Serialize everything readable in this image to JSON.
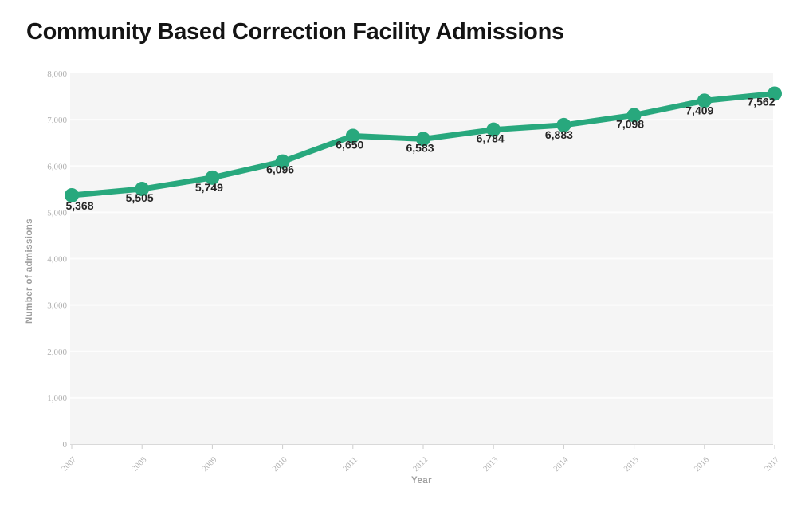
{
  "title": "Community Based Correction Facility Admissions",
  "chart_data": {
    "type": "line",
    "title": "Community Based Correction Facility Admissions",
    "categories": [
      "2007",
      "2008",
      "2009",
      "2010",
      "2011",
      "2012",
      "2013",
      "2014",
      "2015",
      "2016",
      "2017"
    ],
    "series": [
      {
        "name": "Number of admissions",
        "values": [
          5368,
          5505,
          5749,
          6096,
          6650,
          6583,
          6784,
          6883,
          7098,
          7409,
          7562
        ]
      }
    ],
    "point_labels": [
      "5,368",
      "5,505",
      "5,749",
      "6,096",
      "6,650",
      "6,583",
      "6,784",
      "6,883",
      "7,098",
      "7,409",
      "7,562"
    ],
    "xlabel": "Year",
    "ylabel": "Number of admissions",
    "ylim": [
      0,
      8000
    ],
    "ytick_step": 1000,
    "ytick_labels": [
      "0",
      "1,000",
      "2,000",
      "3,000",
      "4,000",
      "5,000",
      "6,000",
      "7,000",
      "8,000"
    ],
    "grid": true,
    "legend": "none",
    "colors": {
      "line": "#28a87d",
      "point": "#28a87d",
      "plot_bg": "#f5f5f5",
      "grid": "#ffffff",
      "axis_line": "#d9d9d9",
      "tick": "#cccccc",
      "tick_label": "#b0b0b0",
      "axis_title": "#9e9e9e",
      "data_label": "#262626",
      "title": "#141414"
    }
  }
}
